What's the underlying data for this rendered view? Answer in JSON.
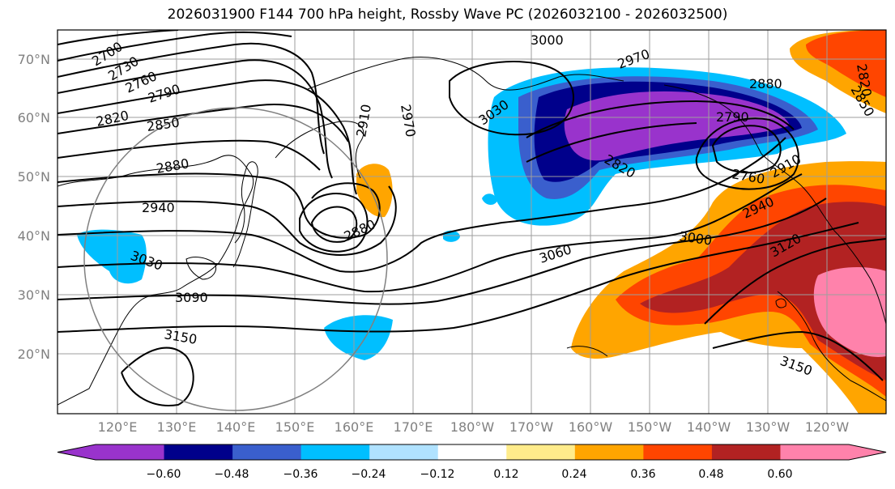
{
  "title": "2026031900 F144 700 hPa height, Rossby Wave PC (2026032100 - 2026032500)",
  "lat_labels": [
    "70°N",
    "60°N",
    "50°N",
    "40°N",
    "30°N",
    "20°N"
  ],
  "lon_labels": [
    "120°E",
    "130°E",
    "140°E",
    "150°E",
    "160°E",
    "170°E",
    "180°W",
    "170°W",
    "160°W",
    "150°W",
    "140°W",
    "130°W",
    "120°W"
  ],
  "contour_labels": [
    "2700",
    "2730",
    "2760",
    "2790",
    "2820",
    "2850",
    "2880",
    "2940",
    "3030",
    "3090",
    "3150",
    "2910",
    "2970",
    "3000",
    "3030",
    "2880",
    "2970",
    "2880",
    "2790",
    "2820",
    "2760",
    "2910",
    "2940",
    "3000",
    "3060",
    "3120",
    "3150",
    "2820",
    "2850"
  ],
  "colorbar": {
    "colors": [
      "#9933cc",
      "#00008b",
      "#3a5fcd",
      "#00bfff",
      "#b0e2ff",
      "#ffffff",
      "#ffec8b",
      "#ffa500",
      "#ff4500",
      "#b22222",
      "#ff82ab"
    ],
    "tick_labels": [
      "−0.60",
      "−0.48",
      "−0.36",
      "−0.24",
      "−0.12",
      "0.12",
      "0.24",
      "0.36",
      "0.48",
      "0.60"
    ]
  }
}
